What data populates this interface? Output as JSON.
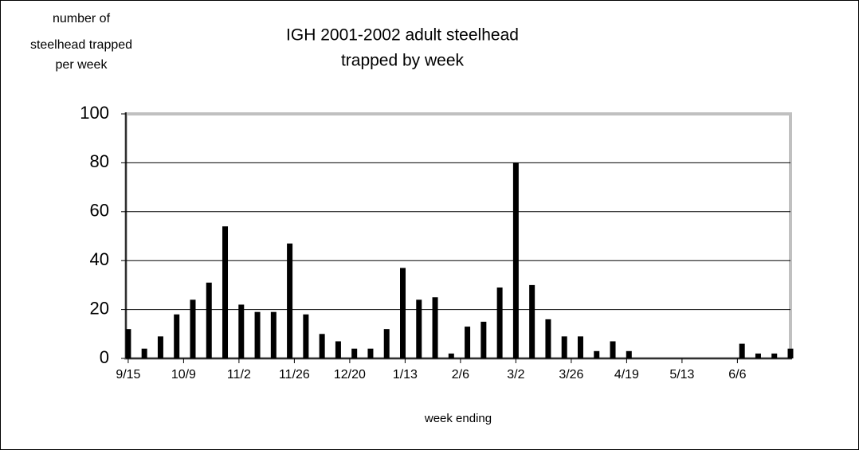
{
  "chart_data": {
    "type": "bar",
    "title": [
      "IGH 2001-2002 adult steelhead",
      "trapped by week"
    ],
    "y_label": [
      "number of",
      "steelhead trapped",
      "per week"
    ],
    "x_label": "week ending",
    "color": "#000000",
    "grid": true,
    "x": [
      0,
      7,
      14,
      21,
      28,
      35,
      42,
      49,
      56,
      63,
      70,
      77,
      84,
      91,
      98,
      105,
      112,
      119,
      126,
      133,
      140,
      147,
      154,
      161,
      168,
      175,
      182,
      189,
      196,
      203,
      210,
      217,
      224,
      231,
      238,
      245,
      252,
      259,
      266,
      273,
      280,
      287
    ],
    "values": [
      12,
      4,
      9,
      18,
      24,
      31,
      54,
      22,
      19,
      19,
      47,
      18,
      10,
      7,
      4,
      4,
      12,
      37,
      24,
      25,
      2,
      13,
      15,
      29,
      80,
      30,
      16,
      9,
      9,
      3,
      7,
      3,
      0,
      0,
      0,
      0,
      0,
      0,
      6,
      2,
      2,
      4
    ],
    "xlim": [
      -1,
      287
    ],
    "xticks": [
      {
        "value": 0,
        "label": "9/15"
      },
      {
        "value": 24,
        "label": "10/9"
      },
      {
        "value": 48,
        "label": "11/2"
      },
      {
        "value": 72,
        "label": "11/26"
      },
      {
        "value": 96,
        "label": "12/20"
      },
      {
        "value": 120,
        "label": "1/13"
      },
      {
        "value": 144,
        "label": "2/6"
      },
      {
        "value": 168,
        "label": "3/2"
      },
      {
        "value": 192,
        "label": "3/26"
      },
      {
        "value": 216,
        "label": "4/19"
      },
      {
        "value": 240,
        "label": "5/13"
      },
      {
        "value": 264,
        "label": "6/6"
      }
    ],
    "ylim": [
      0,
      100
    ],
    "yticks": [
      0,
      20,
      40,
      60,
      80,
      100
    ]
  }
}
